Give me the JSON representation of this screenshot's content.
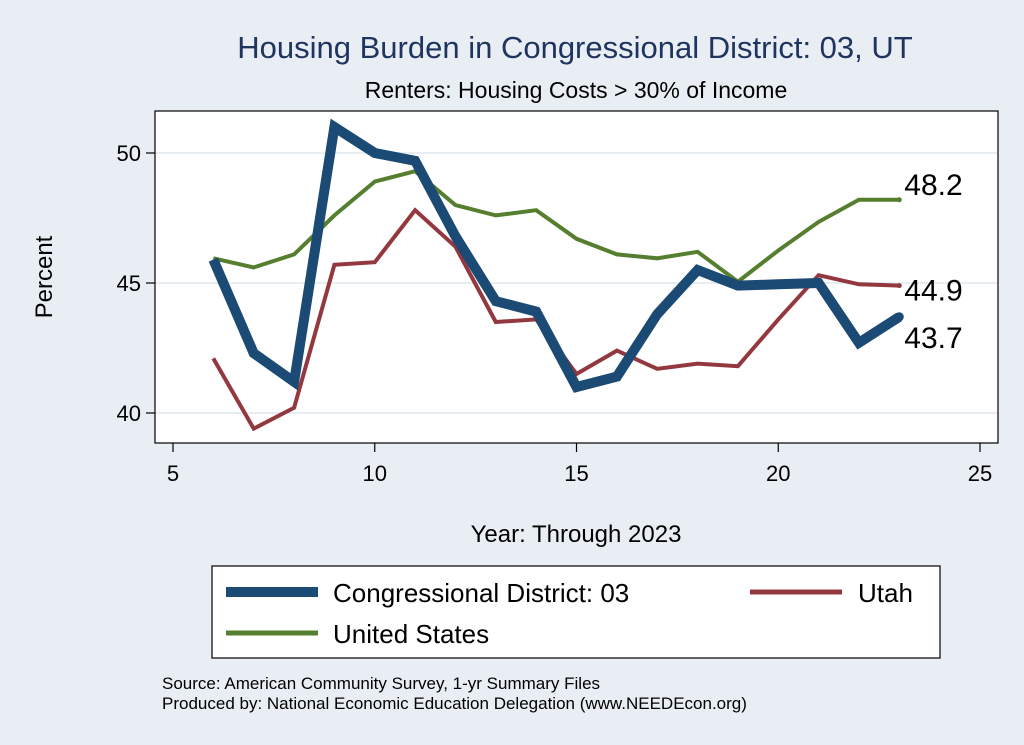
{
  "chart_data": {
    "type": "line",
    "title": "Housing Burden in Congressional District:  03, UT",
    "subtitle": "Renters: Housing Costs > 30% of Income",
    "xlabel": "Year: Through 2023",
    "ylabel": "Percent",
    "xlim": [
      5,
      25
    ],
    "ylim": [
      38.8,
      51.5
    ],
    "xticks": [
      "5",
      "10",
      "15",
      "20",
      "25"
    ],
    "yticks": [
      "40",
      "45",
      "50"
    ],
    "x": [
      6,
      7,
      8,
      9,
      10,
      11,
      12,
      13,
      14,
      15,
      16,
      17,
      18,
      19,
      20,
      21,
      22,
      23
    ],
    "series": [
      {
        "name": "Congressional District:  03",
        "color": "#1b4a75",
        "values": [
          45.9,
          42.3,
          41.2,
          51.0,
          50.0,
          49.7,
          46.8,
          44.3,
          43.9,
          41.0,
          41.4,
          43.8,
          45.5,
          44.9,
          44.95,
          45.0,
          42.7,
          43.7
        ],
        "end_label": "43.7"
      },
      {
        "name": "Utah",
        "color": "#93383f",
        "values": [
          42.1,
          39.4,
          40.2,
          45.7,
          45.8,
          47.8,
          46.4,
          43.5,
          43.6,
          41.5,
          42.4,
          41.7,
          41.9,
          41.8,
          43.6,
          45.3,
          44.95,
          44.9
        ],
        "end_label": "44.9"
      },
      {
        "name": "United States",
        "color": "#557f2f",
        "values": [
          45.95,
          45.6,
          46.1,
          47.6,
          48.9,
          49.3,
          48.0,
          47.6,
          47.8,
          46.7,
          46.1,
          45.95,
          46.2,
          45.05,
          46.25,
          47.35,
          48.2,
          48.2
        ],
        "end_label": "48.2"
      }
    ],
    "legend": {
      "placement": "bottom",
      "items": [
        "Congressional District:  03",
        "Utah",
        "United States"
      ]
    },
    "grid": true
  },
  "footer": {
    "source": "Source: American Community Survey, 1-yr Summary Files",
    "produced": "Produced by: National Economic Education Delegation (www.NEEDEcon.org)"
  }
}
